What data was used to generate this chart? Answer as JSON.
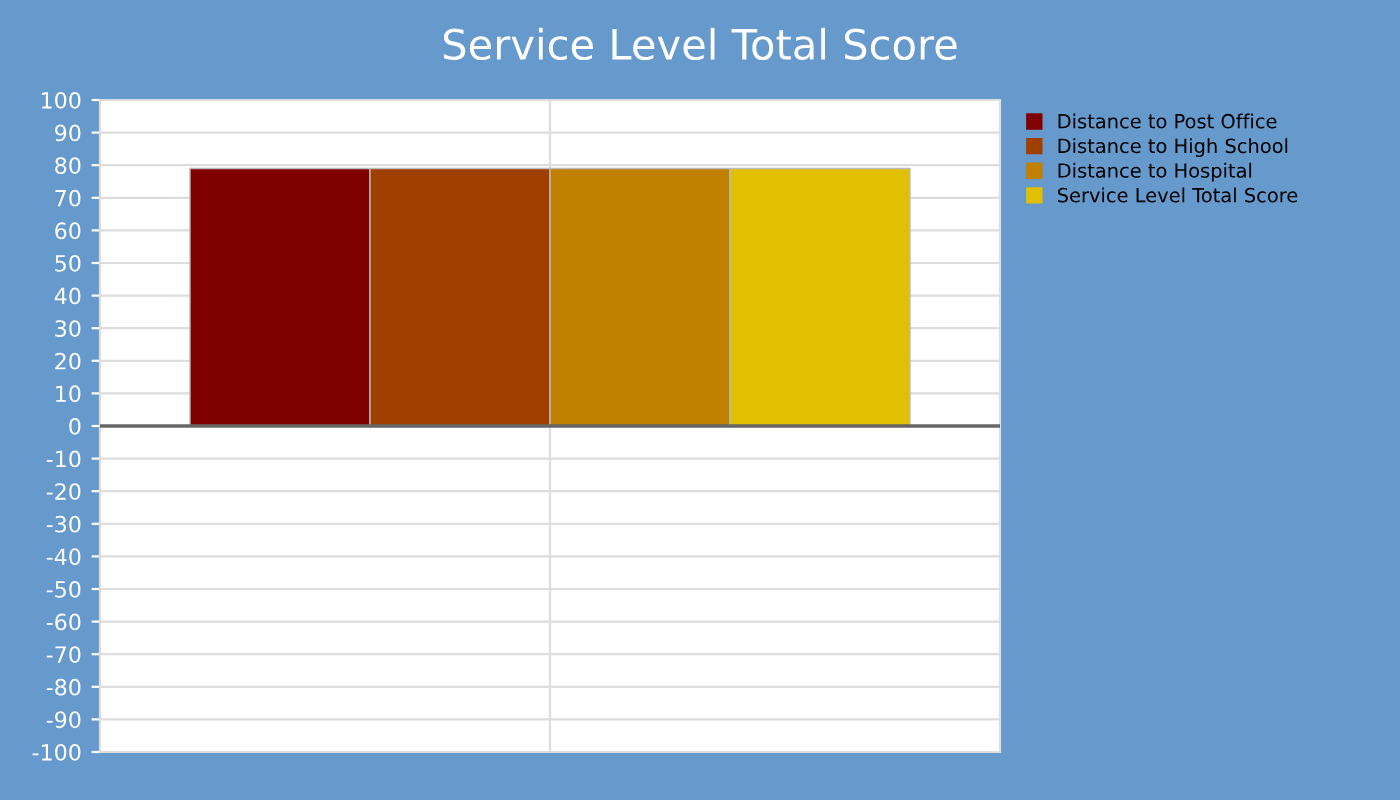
{
  "chart_data": {
    "type": "bar",
    "title": "Service Level Total Score",
    "categories": [
      null
    ],
    "series": [
      {
        "name": "Distance to Post Office",
        "color": "#800000",
        "values": [
          79
        ]
      },
      {
        "name": "Distance to High School",
        "color": "#a04000",
        "values": [
          79
        ]
      },
      {
        "name": "Distance to Hospital",
        "color": "#c08000",
        "values": [
          79
        ]
      },
      {
        "name": "Service Level Total Score",
        "color": "#e0c000",
        "values": [
          79
        ]
      }
    ],
    "ylim": [
      -100,
      100
    ],
    "yticks": [
      -100,
      -90,
      -80,
      -70,
      -60,
      -50,
      -40,
      -30,
      -20,
      -10,
      0,
      10,
      20,
      30,
      40,
      50,
      60,
      70,
      80,
      90,
      100
    ],
    "grid": true,
    "legend": "top right"
  }
}
